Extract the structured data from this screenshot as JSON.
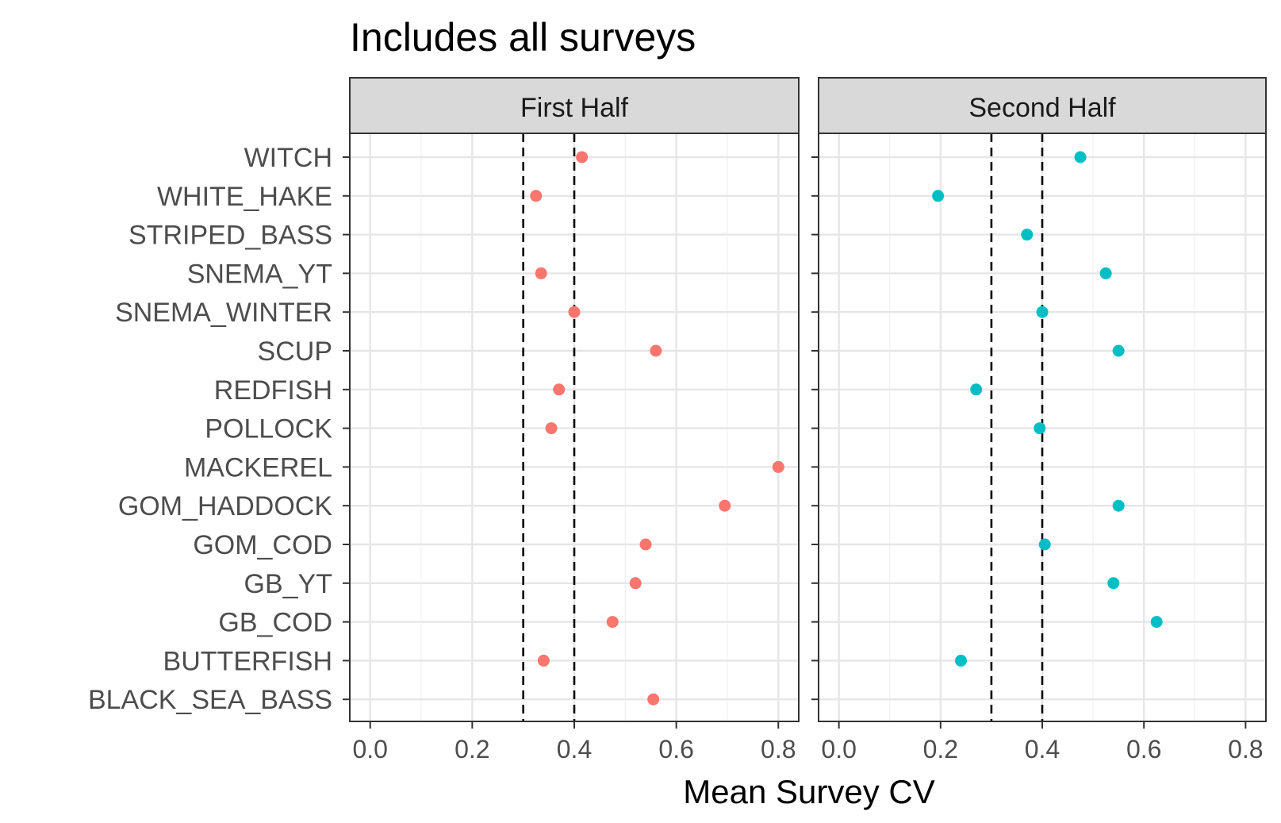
{
  "chart_data": {
    "type": "scatter",
    "title": "Includes all surveys",
    "xlabel": "Mean Survey CV",
    "ylabel": "",
    "xlim": [
      -0.04,
      0.84
    ],
    "x_ticks": [
      "0.0",
      "0.2",
      "0.4",
      "0.6",
      "0.8"
    ],
    "x_tick_values": [
      0.0,
      0.2,
      0.4,
      0.6,
      0.8
    ],
    "reference_lines": [
      0.3,
      0.4
    ],
    "reference_line_style": "dashed",
    "grid": true,
    "categories": [
      "WITCH",
      "WHITE_HAKE",
      "STRIPED_BASS",
      "SNEMA_YT",
      "SNEMA_WINTER",
      "SCUP",
      "REDFISH",
      "POLLOCK",
      "MACKEREL",
      "GOM_HADDOCK",
      "GOM_COD",
      "GB_YT",
      "GB_COD",
      "BUTTERFISH",
      "BLACK_SEA_BASS"
    ],
    "panels": [
      {
        "name": "First Half",
        "color": "#F8766D",
        "values": [
          0.415,
          0.325,
          null,
          0.335,
          0.4,
          0.56,
          0.37,
          0.355,
          0.8,
          0.695,
          0.54,
          0.52,
          0.475,
          0.34,
          0.555
        ]
      },
      {
        "name": "Second Half",
        "color": "#00BFC4",
        "values": [
          0.475,
          0.195,
          0.37,
          0.525,
          0.4,
          0.55,
          0.27,
          0.395,
          null,
          0.55,
          0.405,
          0.54,
          0.625,
          0.24,
          null
        ]
      }
    ]
  }
}
